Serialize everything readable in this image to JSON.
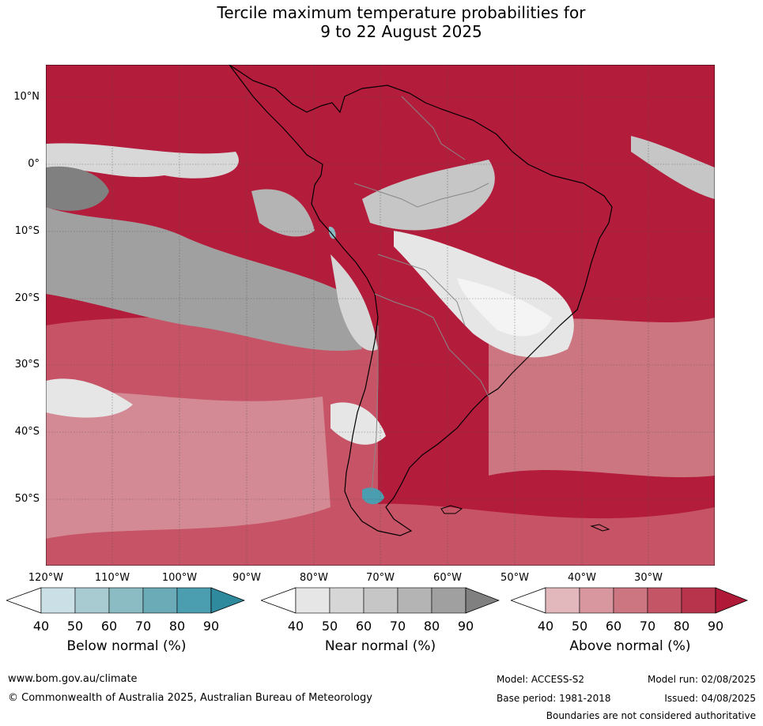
{
  "title_line1": "Tercile maximum temperature probabilities for",
  "title_line2": "9 to 22 August 2025",
  "lat_labels": [
    "10°N",
    "0°",
    "10°S",
    "20°S",
    "30°S",
    "40°S",
    "50°S"
  ],
  "lon_labels": [
    "120°W",
    "110°W",
    "100°W",
    "90°W",
    "80°W",
    "70°W",
    "60°W",
    "50°W",
    "40°W",
    "30°W"
  ],
  "legends": [
    {
      "title": "Below normal (%)",
      "ticks": [
        "40",
        "50",
        "60",
        "70",
        "80",
        "90"
      ],
      "colors": [
        "#ffffff",
        "#cbe0e6",
        "#a8cbd2",
        "#8bbcc4",
        "#6aabb7",
        "#4b9eaf",
        "#2f8a9e"
      ]
    },
    {
      "title": "Near normal (%)",
      "ticks": [
        "40",
        "50",
        "60",
        "70",
        "80",
        "90"
      ],
      "colors": [
        "#ffffff",
        "#e6e6e6",
        "#d6d6d6",
        "#c6c6c6",
        "#b4b4b4",
        "#a0a0a0",
        "#808080"
      ]
    },
    {
      "title": "Above normal (%)",
      "ticks": [
        "40",
        "50",
        "60",
        "70",
        "80",
        "90"
      ],
      "colors": [
        "#ffffff",
        "#e2b8bd",
        "#d8979f",
        "#cc7681",
        "#c35566",
        "#b8344c",
        "#b01a38"
      ]
    }
  ],
  "footer": {
    "website": "www.bom.gov.au/climate",
    "copyright": "© Commonwealth of Australia 2025, Australian Bureau of Meteorology",
    "model": "Model: ACCESS-S2",
    "base_period": "Base period: 1981-2018",
    "model_run": "Model run: 02/08/2025",
    "issued": "Issued: 04/08/2025",
    "disclaimer": "Boundaries are not considered authoritative"
  },
  "colors": {
    "above_dominant": "#b01a38",
    "above_mid": "#cc6a79",
    "near_light": "#e8e8e8",
    "near_dark": "#8a8a8a",
    "below": "#4b9eaf"
  }
}
